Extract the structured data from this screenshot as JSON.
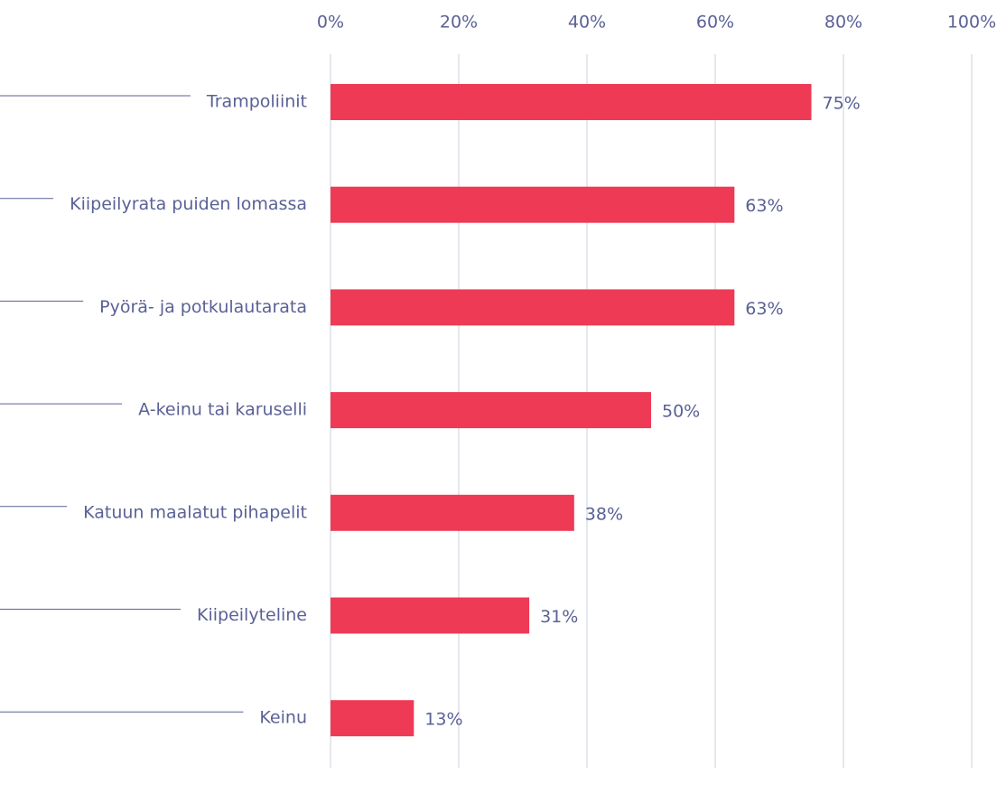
{
  "chart_data": {
    "type": "barh",
    "categories": [
      "Trampoliinit",
      "Kiipeilyrata puiden lomassa",
      "Pyörä- ja potkulautarata",
      "A-keinu tai karuselli",
      "Katuun maalatut pihapelit",
      "Kiipeilyteline",
      "Keinu"
    ],
    "values": [
      75,
      63,
      63,
      50,
      38,
      31,
      13
    ],
    "value_labels": [
      "75%",
      "63%",
      "63%",
      "50%",
      "38%",
      "31%",
      "13%"
    ],
    "color": "#ee3a55",
    "xlim": [
      0,
      100
    ],
    "xticks": [
      {
        "value": 0,
        "label": "0%"
      },
      {
        "value": 20,
        "label": "20%"
      },
      {
        "value": 40,
        "label": "40%"
      },
      {
        "value": 60,
        "label": "60%"
      },
      {
        "value": 80,
        "label": "80%"
      },
      {
        "value": 100,
        "label": "100%"
      }
    ],
    "grid": true
  }
}
